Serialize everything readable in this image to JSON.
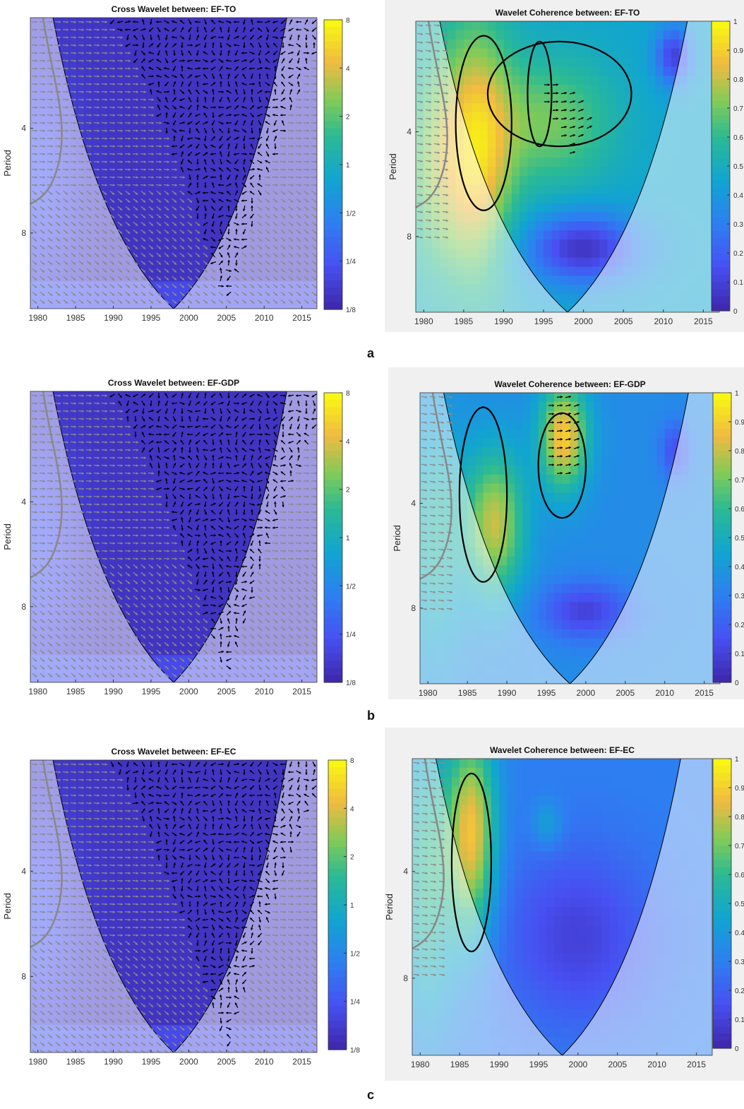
{
  "figure_labels": [
    "a",
    "b",
    "c"
  ],
  "chart_data": [
    {
      "type": "heatmap",
      "title": "Cross Wavelet between: EF-TO",
      "ylabel": "Period",
      "xlim": [
        1979,
        2017
      ],
      "x_ticks": [
        "1980",
        "1985",
        "1990",
        "1995",
        "2000",
        "2005",
        "2010",
        "2015"
      ],
      "y_ticks": [
        "4",
        "8"
      ],
      "colorbar_ticks": [
        "8",
        "4",
        "2",
        "1",
        "1/2",
        "1/4",
        "1/8"
      ],
      "cone_of_influence": {
        "apex_year": 1998,
        "left_top_year": 1982,
        "right_top_year": 2013
      },
      "value_inside_cone": "1/8",
      "phase_arrows": "mixed directions inside cone; rightward in-phase outside cone"
    },
    {
      "type": "heatmap",
      "title": "Wavelet Coherence between: EF-TO",
      "ylabel": "Period",
      "xlim": [
        1979,
        2017
      ],
      "x_ticks": [
        "1980",
        "1985",
        "1990",
        "1995",
        "2000",
        "2005",
        "2010",
        "2015"
      ],
      "y_ticks": [
        "4",
        "8"
      ],
      "colorbar_ticks": [
        "1",
        "0.9",
        "0.8",
        "0.7",
        "0.6",
        "0.5",
        "0.4",
        "0.3",
        "0.2",
        "0.1",
        "0"
      ],
      "cone_of_influence": {
        "apex_year": 1998,
        "left_top_year": 1982,
        "right_top_year": 2013
      },
      "significant_regions": [
        {
          "years": [
            1984,
            1991
          ],
          "coherence": 0.8
        },
        {
          "years": [
            1988,
            2006
          ],
          "coherence": 0.65
        },
        {
          "years": [
            1993,
            1996
          ],
          "coherence": 0.7
        }
      ],
      "low_coherence_regions": [
        {
          "years": [
            1990,
            2005
          ],
          "coherence": 0.1
        },
        {
          "years": [
            2008,
            2012
          ],
          "coherence": 0.15
        }
      ]
    },
    {
      "type": "heatmap",
      "title": "Cross Wavelet between: EF-GDP",
      "ylabel": "Period",
      "xlim": [
        1979,
        2017
      ],
      "x_ticks": [
        "1980",
        "1985",
        "1990",
        "1995",
        "2000",
        "2005",
        "2010",
        "2015"
      ],
      "y_ticks": [
        "4",
        "8"
      ],
      "colorbar_ticks": [
        "8",
        "4",
        "2",
        "1",
        "1/2",
        "1/4",
        "1/8"
      ],
      "cone_of_influence": {
        "apex_year": 1998,
        "left_top_year": 1982,
        "right_top_year": 2013
      },
      "value_inside_cone": "1/8"
    },
    {
      "type": "heatmap",
      "title": "Wavelet Coherence between: EF-GDP",
      "ylabel": "Period",
      "xlim": [
        1979,
        2017
      ],
      "x_ticks": [
        "1980",
        "1985",
        "1990",
        "1995",
        "2000",
        "2005",
        "2010",
        "2015"
      ],
      "y_ticks": [
        "4",
        "8"
      ],
      "colorbar_ticks": [
        "1",
        "0.9",
        "0.8",
        "0.7",
        "0.6",
        "0.5",
        "0.4",
        "0.3",
        "0.2",
        "0.1",
        "0"
      ],
      "cone_of_influence": {
        "apex_year": 1998,
        "left_top_year": 1982,
        "right_top_year": 2013
      },
      "significant_regions": [
        {
          "years": [
            1984,
            1990
          ],
          "coherence": 0.8
        },
        {
          "years": [
            1994,
            2000
          ],
          "coherence": 0.85
        }
      ]
    },
    {
      "type": "heatmap",
      "title": "Cross Wavelet between: EF-EC",
      "ylabel": "Period",
      "xlim": [
        1979,
        2017
      ],
      "x_ticks": [
        "1980",
        "1985",
        "1990",
        "1995",
        "2000",
        "2005",
        "2010",
        "2015"
      ],
      "y_ticks": [
        "4",
        "8"
      ],
      "colorbar_ticks": [
        "8",
        "4",
        "2",
        "1",
        "1/2",
        "1/4",
        "1/8"
      ],
      "cone_of_influence": {
        "apex_year": 1998,
        "left_top_year": 1982,
        "right_top_year": 2013
      },
      "value_inside_cone": "1/8"
    },
    {
      "type": "heatmap",
      "title": "Wavelet Coherence between: EF-EC",
      "ylabel": "Period",
      "xlim": [
        1979,
        2017
      ],
      "x_ticks": [
        "1980",
        "1985",
        "1990",
        "1995",
        "2000",
        "2005",
        "2010",
        "2015"
      ],
      "y_ticks": [
        "4",
        "8"
      ],
      "colorbar_ticks": [
        "1",
        "0.9",
        "0.8",
        "0.7",
        "0.6",
        "0.5",
        "0.4",
        "0.3",
        "0.2",
        "0.1",
        "0"
      ],
      "cone_of_influence": {
        "apex_year": 1998,
        "left_top_year": 1982,
        "right_top_year": 2013
      },
      "significant_regions": [
        {
          "years": [
            1984,
            1989
          ],
          "coherence": 0.85
        }
      ]
    }
  ]
}
